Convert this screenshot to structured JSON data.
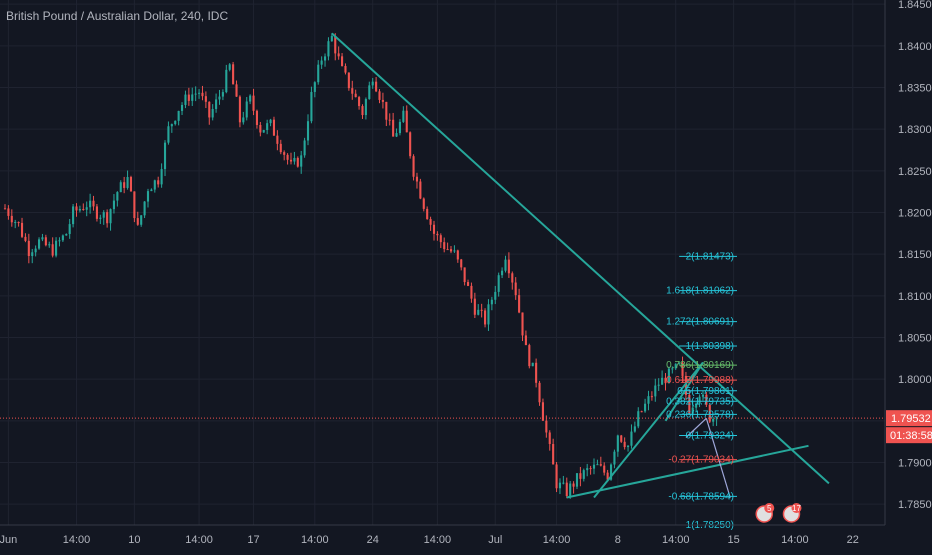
{
  "chart_data": {
    "type": "candlestick",
    "title": "British Pound / Australian Dollar, 240, IDC",
    "ylim": [
      1.7825,
      1.8455
    ],
    "y_ticks": [
      "1.84500",
      "1.84000",
      "1.83500",
      "1.83000",
      "1.82500",
      "1.82000",
      "1.81500",
      "1.81000",
      "1.80500",
      "1.80000",
      "1.79500",
      "1.79000",
      "1.78500"
    ],
    "x_ticks": [
      {
        "label": "Jun",
        "bar": 1
      },
      {
        "label": "14:00",
        "bar": 21
      },
      {
        "label": "10",
        "bar": 38
      },
      {
        "label": "14:00",
        "bar": 57
      },
      {
        "label": "17",
        "bar": 73
      },
      {
        "label": "14:00",
        "bar": 91
      },
      {
        "label": "24",
        "bar": 108
      },
      {
        "label": "14:00",
        "bar": 127
      },
      {
        "label": "Jul",
        "bar": 144
      },
      {
        "label": "14:00",
        "bar": 162
      },
      {
        "label": "8",
        "bar": 180
      },
      {
        "label": "14:00",
        "bar": 197
      },
      {
        "label": "15",
        "bar": 214
      },
      {
        "label": "14:00",
        "bar": 232
      },
      {
        "label": "22",
        "bar": 249
      }
    ],
    "x_range": [
      0,
      257
    ],
    "last_price": "1.79532",
    "countdown": "01:38:58",
    "up_color": "#26a69a",
    "down_color": "#ef5350",
    "close_path": [
      [
        0,
        1.8205
      ],
      [
        4,
        1.8185
      ],
      [
        7,
        1.8155
      ],
      [
        10,
        1.8165
      ],
      [
        14,
        1.8155
      ],
      [
        18,
        1.8175
      ],
      [
        20,
        1.82
      ],
      [
        24,
        1.821
      ],
      [
        27,
        1.82
      ],
      [
        30,
        1.8195
      ],
      [
        33,
        1.8225
      ],
      [
        36,
        1.824
      ],
      [
        39,
        1.818
      ],
      [
        42,
        1.823
      ],
      [
        45,
        1.824
      ],
      [
        48,
        1.83
      ],
      [
        51,
        1.8325
      ],
      [
        54,
        1.834
      ],
      [
        57,
        1.8345
      ],
      [
        60,
        1.8315
      ],
      [
        63,
        1.834
      ],
      [
        66,
        1.8375
      ],
      [
        69,
        1.831
      ],
      [
        72,
        1.8335
      ],
      [
        75,
        1.83
      ],
      [
        78,
        1.8305
      ],
      [
        81,
        1.828
      ],
      [
        84,
        1.8255
      ],
      [
        87,
        1.8265
      ],
      [
        90,
        1.834
      ],
      [
        93,
        1.8385
      ],
      [
        96,
        1.841
      ],
      [
        99,
        1.837
      ],
      [
        102,
        1.8345
      ],
      [
        105,
        1.832
      ],
      [
        108,
        1.8365
      ],
      [
        111,
        1.833
      ],
      [
        114,
        1.829
      ],
      [
        117,
        1.8315
      ],
      [
        120,
        1.825
      ],
      [
        123,
        1.821
      ],
      [
        126,
        1.8175
      ],
      [
        129,
        1.816
      ],
      [
        132,
        1.815
      ],
      [
        135,
        1.812
      ],
      [
        138,
        1.8085
      ],
      [
        141,
        1.807
      ],
      [
        144,
        1.811
      ],
      [
        147,
        1.815
      ],
      [
        150,
        1.8105
      ],
      [
        153,
        1.8035
      ],
      [
        156,
        1.8
      ],
      [
        159,
        1.7935
      ],
      [
        162,
        1.7875
      ],
      [
        165,
        1.7865
      ],
      [
        168,
        1.788
      ],
      [
        171,
        1.789
      ],
      [
        174,
        1.7895
      ],
      [
        177,
        1.7885
      ],
      [
        180,
        1.7935
      ],
      [
        183,
        1.792
      ],
      [
        186,
        1.7955
      ],
      [
        189,
        1.7975
      ],
      [
        192,
        1.7995
      ],
      [
        195,
        1.8005
      ],
      [
        198,
        1.8015
      ],
      [
        201,
        1.7965
      ],
      [
        204,
        1.7985
      ],
      [
        207,
        1.7955
      ],
      [
        209,
        1.7953
      ]
    ],
    "fib_levels": [
      {
        "label": "2(1.81473)",
        "price": 1.81473,
        "color": "#26c6da"
      },
      {
        "label": "1.618(1.81062)",
        "price": 1.81062,
        "color": "#26c6da"
      },
      {
        "label": "1.272(1.80691)",
        "price": 1.80691,
        "color": "#26c6da"
      },
      {
        "label": "1(1.80398)",
        "price": 1.80398,
        "color": "#26c6da"
      },
      {
        "label": "0.786(1.80169)",
        "price": 1.80169,
        "color": "#66bb6a"
      },
      {
        "label": "0.618(1.79988)",
        "price": 1.79988,
        "color": "#ef5350"
      },
      {
        "label": "0.5(1.79861)",
        "price": 1.79861,
        "color": "#26c6da"
      },
      {
        "label": "0.382(1.79735)",
        "price": 1.79735,
        "color": "#26c6da"
      },
      {
        "label": "0.236(1.79578)",
        "price": 1.79578,
        "color": "#26c6da"
      },
      {
        "label": "0(1.79324)",
        "price": 1.79324,
        "color": "#26c6da"
      },
      {
        "label": "-0.27(1.79034)",
        "price": 1.79034,
        "color": "#ef5350"
      },
      {
        "label": "-0.68(1.78594)",
        "price": 1.78594,
        "color": "#26c6da"
      },
      {
        "label": "-1(1.78250)",
        "price": 1.7825,
        "color": "#26c6da"
      }
    ],
    "trendlines": [
      {
        "from": [
          96,
          1.8415
        ],
        "to": [
          242,
          1.7875
        ],
        "color": "#26a69a"
      },
      {
        "from": [
          165,
          1.7858
        ],
        "to": [
          236,
          1.792
        ],
        "color": "#26a69a"
      },
      {
        "from": [
          173,
          1.7858
        ],
        "to": [
          205,
          1.802
        ],
        "color": "#26a69a"
      },
      {
        "from": [
          194,
          1.795
        ],
        "to": [
          205,
          1.802
        ],
        "color": "#26a69a"
      }
    ],
    "event_badges": [
      "5",
      "17"
    ]
  }
}
